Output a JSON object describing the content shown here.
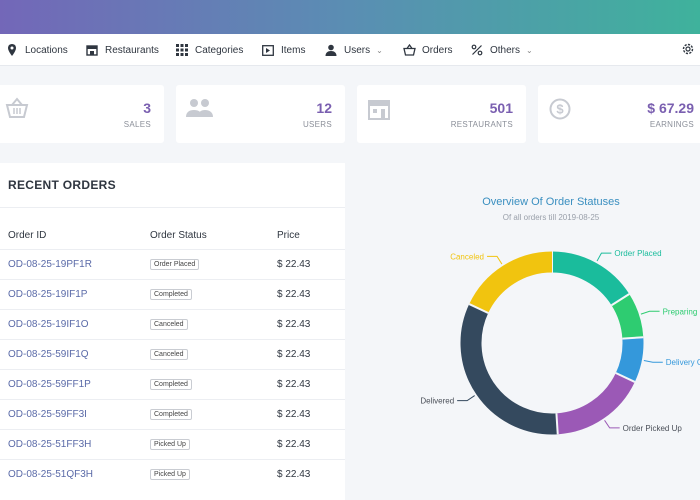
{
  "nav": {
    "items": [
      {
        "label": "Locations"
      },
      {
        "label": "Restaurants"
      },
      {
        "label": "Categories"
      },
      {
        "label": "Items"
      },
      {
        "label": "Users"
      },
      {
        "label": "Orders"
      },
      {
        "label": "Others"
      }
    ]
  },
  "stats": [
    {
      "value": "3",
      "label": "SALES"
    },
    {
      "value": "12",
      "label": "USERS"
    },
    {
      "value": "501",
      "label": "RESTAURANTS"
    },
    {
      "value": "$ 67.29",
      "label": "EARNINGS"
    }
  ],
  "orders": {
    "title": "RECENT ORDERS",
    "columns": [
      "Order ID",
      "Order Status",
      "Price"
    ],
    "rows": [
      {
        "id": "OD-08-25-19PF1R",
        "status": "Order Placed",
        "price": "$ 22.43"
      },
      {
        "id": "OD-08-25-19IF1P",
        "status": "Completed",
        "price": "$ 22.43"
      },
      {
        "id": "OD-08-25-19IF1O",
        "status": "Canceled",
        "price": "$ 22.43"
      },
      {
        "id": "OD-08-25-59IF1Q",
        "status": "Canceled",
        "price": "$ 22.43"
      },
      {
        "id": "OD-08-25-59FF1P",
        "status": "Completed",
        "price": "$ 22.43"
      },
      {
        "id": "OD-08-25-59FF3I",
        "status": "Completed",
        "price": "$ 22.43"
      },
      {
        "id": "OD-08-25-51FF3H",
        "status": "Picked Up",
        "price": "$ 22.43"
      },
      {
        "id": "OD-08-25-51QF3H",
        "status": "Picked Up",
        "price": "$ 22.43"
      }
    ]
  },
  "chart_data": {
    "type": "pie",
    "title": "Overview Of Order Statuses",
    "subtitle": "Of all orders till 2019-08-25",
    "slices": [
      {
        "label": "Order Placed",
        "value": 16,
        "color": "#1abc9c"
      },
      {
        "label": "Preparing",
        "value": 8,
        "color": "#2ecc71"
      },
      {
        "label": "Delivery Gu",
        "value": 8,
        "color": "#3498db"
      },
      {
        "label": "Order Picked Up",
        "value": 17,
        "color": "#9b59b6"
      },
      {
        "label": "Delivered",
        "value": 33,
        "color": "#34495e"
      },
      {
        "label": "Canceled",
        "value": 18,
        "color": "#f1c40f"
      }
    ]
  }
}
